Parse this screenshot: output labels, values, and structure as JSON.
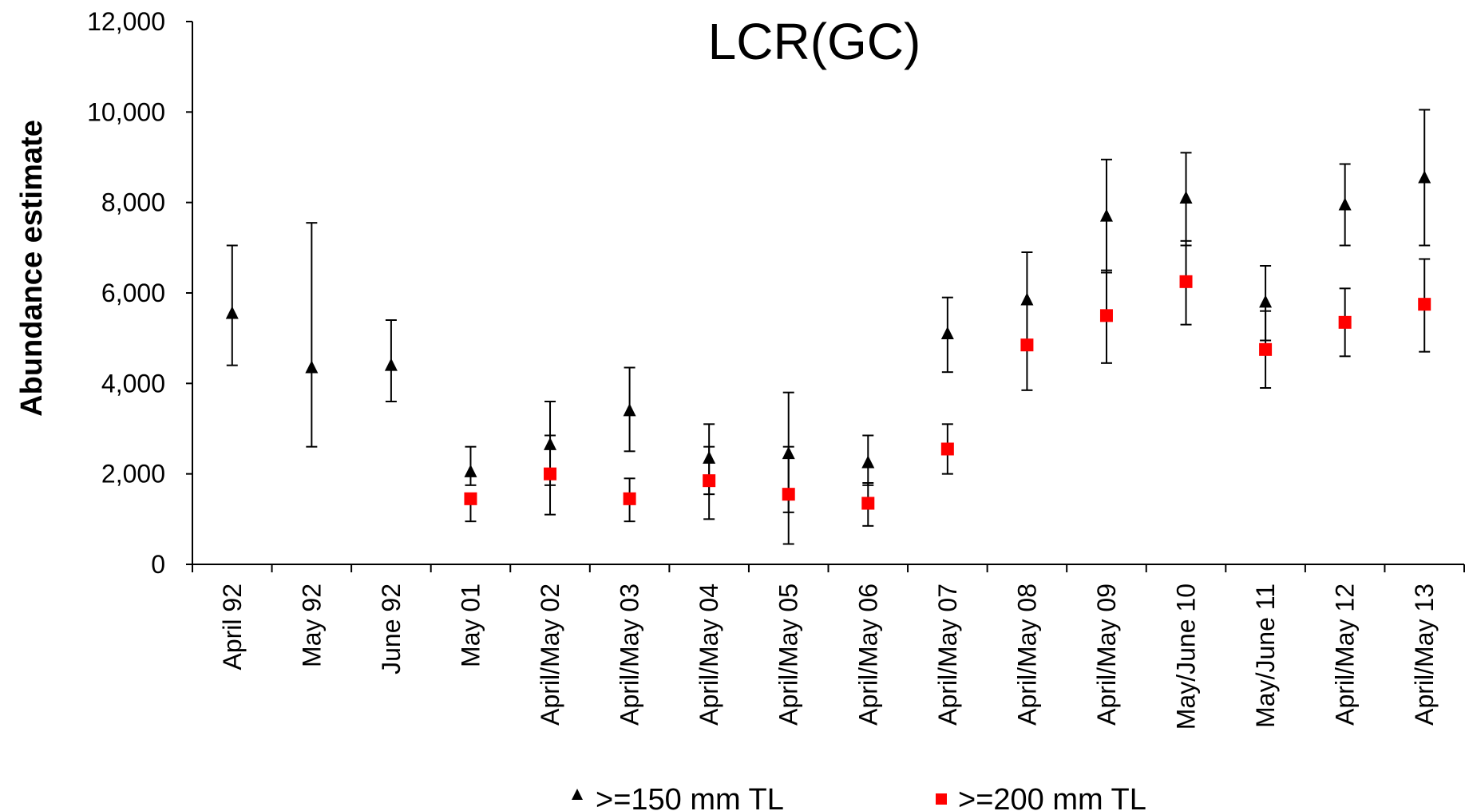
{
  "chart_data": {
    "type": "scatter",
    "title": "LCR(GC)",
    "ylabel": "Abundance estimate",
    "xlabel": "",
    "ylim": [
      0,
      12000
    ],
    "yticks": [
      0,
      2000,
      4000,
      6000,
      8000,
      10000,
      12000
    ],
    "ytick_labels": [
      "0",
      "2,000",
      "4,000",
      "6,000",
      "8,000",
      "10,000",
      "12,000"
    ],
    "grid": false,
    "legend_position": "bottom",
    "categories": [
      "April 92",
      "May 92",
      "June 92",
      "May 01",
      "April/May 02",
      "April/May 03",
      "April/May 04",
      "April/May 05",
      "April/May 06",
      "April/May 07",
      "April/May 08",
      "April/May 09",
      "May/June 10",
      "May/June 11",
      "April/May 12",
      "April/May 13"
    ],
    "series": [
      {
        "name": ">=150 mm TL",
        "marker": "triangle",
        "color": "#000000",
        "values": [
          5550,
          4350,
          4400,
          2050,
          2650,
          3400,
          2350,
          2450,
          2250,
          5100,
          5850,
          7700,
          8100,
          5800,
          7950,
          8550
        ],
        "lower": [
          4400,
          2600,
          3600,
          1750,
          1750,
          2500,
          1550,
          1150,
          1750,
          4250,
          4850,
          6450,
          7050,
          4950,
          7050,
          7050
        ],
        "upper": [
          7050,
          7550,
          5400,
          2600,
          3600,
          4350,
          3100,
          3800,
          2850,
          5900,
          6900,
          8950,
          9100,
          6600,
          8850,
          10050
        ]
      },
      {
        "name": ">=200 mm TL",
        "marker": "square",
        "color": "#ff0000",
        "values": [
          null,
          null,
          null,
          1450,
          2000,
          1450,
          1850,
          1550,
          1350,
          2550,
          4850,
          5500,
          6250,
          4750,
          5350,
          5750
        ],
        "lower": [
          null,
          null,
          null,
          950,
          1100,
          950,
          1000,
          450,
          850,
          2000,
          3850,
          4450,
          5300,
          3900,
          4600,
          4700
        ],
        "upper": [
          null,
          null,
          null,
          1450,
          2850,
          1900,
          2600,
          2600,
          1800,
          3100,
          4850,
          6500,
          7150,
          5600,
          6100,
          6750
        ]
      }
    ]
  }
}
